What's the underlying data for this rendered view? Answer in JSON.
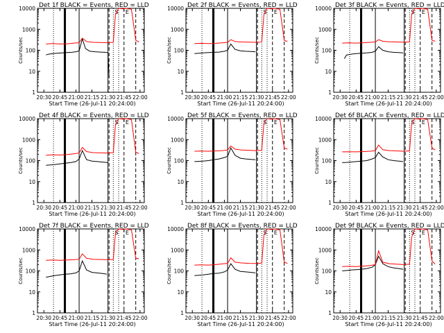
{
  "colors": {
    "events": "#000000",
    "lld": "#ff0000",
    "axis": "#000000"
  },
  "shared": {
    "ylabel": "Counts/sec",
    "xlabel": "Start Time (26-Jul-11 20:24:00)",
    "y_ticks": [
      "1",
      "10",
      "100",
      "1000",
      "10000"
    ],
    "x_ticks": [
      "20:30",
      "20:45",
      "21:00",
      "21:15",
      "21:30",
      "21:45",
      "22:00"
    ],
    "markers": {
      "s": "S",
      "e": "E"
    }
  },
  "chart_data": [
    {
      "type": "line",
      "title": "Det 1f BLACK = Events, RED = LLD",
      "xlabel": "Start Time (26-Jul-11 20:24:00)",
      "ylabel": "Counts/sec",
      "xlim": [
        "20:24",
        "22:04"
      ],
      "ylim": [
        1,
        10000
      ],
      "yscale": "log",
      "series": [
        {
          "name": "Events",
          "color": "#000000",
          "x": [
            "20:32",
            "20:34",
            "20:38",
            "20:42",
            "20:47",
            "20:51",
            "20:56",
            "21:00",
            "21:03",
            "21:06",
            "21:09",
            "21:13",
            "21:18",
            "21:23",
            "21:27",
            "21:30",
            "21:31"
          ],
          "y": [
            60,
            65,
            70,
            72,
            75,
            78,
            80,
            85,
            95,
            350,
            120,
            90,
            85,
            82,
            80,
            78,
            5
          ]
        },
        {
          "name": "LLD",
          "color": "#ff0000",
          "x": [
            "20:32",
            "20:38",
            "20:45",
            "20:52",
            "20:58",
            "21:03",
            "21:06",
            "21:10",
            "21:16",
            "21:23",
            "21:29",
            "21:35",
            "21:37",
            "21:40",
            "21:44",
            "21:47",
            "21:52",
            "21:56",
            "21:59"
          ],
          "y": [
            200,
            210,
            200,
            205,
            220,
            230,
            380,
            260,
            240,
            235,
            230,
            240,
            5000,
            10000,
            9500,
            10000,
            9000,
            300,
            250
          ]
        }
      ]
    },
    {
      "type": "line",
      "title": "Det 2f BLACK = Events, RED = LLD",
      "xlabel": "Start Time (26-Jul-11 20:24:00)",
      "ylabel": "Counts/sec",
      "xlim": [
        "20:24",
        "22:04"
      ],
      "ylim": [
        1,
        10000
      ],
      "yscale": "log",
      "series": [
        {
          "name": "Events",
          "color": "#000000",
          "x": [
            "20:32",
            "20:36",
            "20:40",
            "20:45",
            "20:50",
            "20:55",
            "21:00",
            "21:03",
            "21:06",
            "21:10",
            "21:15",
            "21:20",
            "21:25",
            "21:29"
          ],
          "y": [
            70,
            72,
            75,
            78,
            80,
            82,
            90,
            100,
            200,
            110,
            95,
            90,
            88,
            85
          ]
        },
        {
          "name": "LLD",
          "color": "#ff0000",
          "x": [
            "20:32",
            "20:38",
            "20:45",
            "20:52",
            "20:58",
            "21:03",
            "21:06",
            "21:10",
            "21:16",
            "21:23",
            "21:29",
            "21:35",
            "21:37",
            "21:40",
            "21:44",
            "21:47",
            "21:52",
            "21:56",
            "21:59"
          ],
          "y": [
            210,
            215,
            210,
            215,
            225,
            240,
            320,
            260,
            250,
            245,
            240,
            245,
            5000,
            10000,
            9500,
            10000,
            9000,
            300,
            260
          ]
        }
      ]
    },
    {
      "type": "line",
      "title": "Det 3f BLACK = Events, RED = LLD",
      "xlabel": "Start Time (26-Jul-11 20:24:00)",
      "ylabel": "Counts/sec",
      "xlim": [
        "20:24",
        "22:04"
      ],
      "ylim": [
        1,
        10000
      ],
      "yscale": "log",
      "series": [
        {
          "name": "Events",
          "color": "#000000",
          "x": [
            "20:34",
            "20:36",
            "20:40",
            "20:45",
            "20:50",
            "20:55",
            "21:00",
            "21:03",
            "21:06",
            "21:10",
            "21:15",
            "21:20",
            "21:25",
            "21:29"
          ],
          "y": [
            40,
            60,
            65,
            70,
            72,
            75,
            80,
            90,
            150,
            100,
            85,
            80,
            78,
            75
          ]
        },
        {
          "name": "LLD",
          "color": "#ff0000",
          "x": [
            "20:32",
            "20:38",
            "20:45",
            "20:52",
            "20:58",
            "21:03",
            "21:06",
            "21:10",
            "21:16",
            "21:23",
            "21:29",
            "21:35",
            "21:37",
            "21:40",
            "21:44",
            "21:47",
            "21:52",
            "21:56",
            "21:59"
          ],
          "y": [
            220,
            225,
            220,
            230,
            240,
            250,
            320,
            270,
            255,
            250,
            245,
            250,
            5000,
            10000,
            9500,
            10000,
            9000,
            300,
            270
          ]
        }
      ]
    },
    {
      "type": "line",
      "title": "Det 4f BLACK = Events, RED = LLD",
      "xlabel": "Start Time (26-Jul-11 20:24:00)",
      "ylabel": "Counts/sec",
      "xlim": [
        "20:24",
        "22:04"
      ],
      "ylim": [
        1,
        10000
      ],
      "yscale": "log",
      "series": [
        {
          "name": "Events",
          "color": "#000000",
          "x": [
            "20:32",
            "20:36",
            "20:40",
            "20:45",
            "20:50",
            "20:55",
            "21:00",
            "21:03",
            "21:06",
            "21:10",
            "21:15",
            "21:20",
            "21:25",
            "21:30"
          ],
          "y": [
            60,
            62,
            65,
            70,
            75,
            80,
            90,
            120,
            300,
            110,
            95,
            90,
            85,
            80
          ]
        },
        {
          "name": "LLD",
          "color": "#ff0000",
          "x": [
            "20:32",
            "20:38",
            "20:45",
            "20:52",
            "20:58",
            "21:03",
            "21:06",
            "21:10",
            "21:16",
            "21:23",
            "21:29",
            "21:35",
            "21:37",
            "21:40",
            "21:44",
            "21:47",
            "21:52",
            "21:56",
            "21:59"
          ],
          "y": [
            180,
            190,
            185,
            195,
            210,
            230,
            420,
            270,
            240,
            235,
            230,
            240,
            5000,
            10000,
            9500,
            10000,
            9000,
            250,
            220
          ]
        }
      ]
    },
    {
      "type": "line",
      "title": "Det 5f BLACK = Events, RED = LLD",
      "xlabel": "Start Time (26-Jul-11 20:24:00)",
      "ylabel": "Counts/sec",
      "xlim": [
        "20:24",
        "22:04"
      ],
      "ylim": [
        1,
        10000
      ],
      "yscale": "log",
      "series": [
        {
          "name": "Events",
          "color": "#000000",
          "x": [
            "20:32",
            "20:36",
            "20:40",
            "20:45",
            "20:50",
            "20:55",
            "21:00",
            "21:03",
            "21:06",
            "21:10",
            "21:15",
            "21:20",
            "21:25",
            "21:29"
          ],
          "y": [
            90,
            92,
            95,
            100,
            110,
            120,
            140,
            160,
            400,
            180,
            130,
            120,
            115,
            110
          ]
        },
        {
          "name": "LLD",
          "color": "#ff0000",
          "x": [
            "20:32",
            "20:38",
            "20:45",
            "20:52",
            "20:58",
            "21:03",
            "21:06",
            "21:10",
            "21:16",
            "21:23",
            "21:29",
            "21:35",
            "21:37",
            "21:40",
            "21:44",
            "21:47",
            "21:52",
            "21:56",
            "21:59"
          ],
          "y": [
            280,
            285,
            280,
            290,
            300,
            320,
            500,
            350,
            320,
            310,
            300,
            310,
            6000,
            10000,
            9500,
            10000,
            9000,
            400,
            350
          ]
        }
      ]
    },
    {
      "type": "line",
      "title": "Det 6f BLACK = Events, RED = LLD",
      "xlabel": "Start Time (26-Jul-11 20:24:00)",
      "ylabel": "Counts/sec",
      "xlim": [
        "20:24",
        "22:04"
      ],
      "ylim": [
        1,
        10000
      ],
      "yscale": "log",
      "series": [
        {
          "name": "Events",
          "color": "#000000",
          "x": [
            "20:32",
            "20:36",
            "20:40",
            "20:45",
            "20:50",
            "20:55",
            "21:00",
            "21:03",
            "21:06",
            "21:10",
            "21:15",
            "21:20",
            "21:25",
            "21:29"
          ],
          "y": [
            80,
            82,
            85,
            90,
            95,
            100,
            120,
            140,
            250,
            150,
            110,
            100,
            95,
            90
          ]
        },
        {
          "name": "LLD",
          "color": "#ff0000",
          "x": [
            "20:32",
            "20:38",
            "20:45",
            "20:52",
            "20:58",
            "21:03",
            "21:06",
            "21:10",
            "21:16",
            "21:23",
            "21:29",
            "21:35",
            "21:37",
            "21:40",
            "21:44",
            "21:47",
            "21:52",
            "21:56",
            "21:59"
          ],
          "y": [
            260,
            265,
            260,
            270,
            280,
            300,
            550,
            330,
            300,
            290,
            280,
            290,
            6000,
            10000,
            9500,
            10000,
            9000,
            400,
            320
          ]
        }
      ]
    },
    {
      "type": "line",
      "title": "Det 7f BLACK = Events, RED = LLD",
      "xlabel": "Start Time (26-Jul-11 20:24:00)",
      "ylabel": "Counts/sec",
      "xlim": [
        "20:24",
        "22:04"
      ],
      "ylim": [
        1,
        10000
      ],
      "yscale": "log",
      "series": [
        {
          "name": "Events",
          "color": "#000000",
          "x": [
            "20:32",
            "20:36",
            "20:40",
            "20:45",
            "20:50",
            "20:55",
            "21:00",
            "21:03",
            "21:06",
            "21:10",
            "21:15",
            "21:20",
            "21:25",
            "21:29"
          ],
          "y": [
            50,
            55,
            60,
            65,
            70,
            72,
            80,
            100,
            300,
            110,
            85,
            80,
            75,
            70
          ]
        },
        {
          "name": "LLD",
          "color": "#ff0000",
          "x": [
            "20:32",
            "20:38",
            "20:45",
            "20:52",
            "20:58",
            "21:03",
            "21:06",
            "21:10",
            "21:16",
            "21:23",
            "21:29",
            "21:35",
            "21:37",
            "21:40",
            "21:44",
            "21:47",
            "21:52",
            "21:56",
            "21:59"
          ],
          "y": [
            320,
            330,
            320,
            330,
            340,
            360,
            650,
            400,
            360,
            350,
            340,
            350,
            6000,
            10000,
            9500,
            10000,
            9000,
            400,
            380
          ]
        }
      ]
    },
    {
      "type": "line",
      "title": "Det 8f BLACK = Events, RED = LLD",
      "xlabel": "Start Time (26-Jul-11 20:24:00)",
      "ylabel": "Counts/sec",
      "xlim": [
        "20:24",
        "22:04"
      ],
      "ylim": [
        1,
        10000
      ],
      "yscale": "log",
      "series": [
        {
          "name": "Events",
          "color": "#000000",
          "x": [
            "20:32",
            "20:36",
            "20:40",
            "20:45",
            "20:50",
            "20:55",
            "21:00",
            "21:03",
            "21:06",
            "21:10",
            "21:15",
            "21:20",
            "21:25",
            "21:29"
          ],
          "y": [
            60,
            62,
            65,
            70,
            75,
            78,
            90,
            110,
            220,
            120,
            95,
            90,
            85,
            80
          ]
        },
        {
          "name": "LLD",
          "color": "#ff0000",
          "x": [
            "20:32",
            "20:38",
            "20:45",
            "20:52",
            "20:58",
            "21:03",
            "21:06",
            "21:10",
            "21:16",
            "21:23",
            "21:29",
            "21:35",
            "21:37",
            "21:40",
            "21:44",
            "21:47",
            "21:52",
            "21:56",
            "21:59"
          ],
          "y": [
            190,
            195,
            190,
            200,
            215,
            230,
            420,
            260,
            240,
            230,
            225,
            235,
            5000,
            10000,
            9500,
            10000,
            9000,
            260,
            230
          ]
        }
      ]
    },
    {
      "type": "line",
      "title": "Det 9f BLACK = Events, RED = LLD",
      "xlabel": "Start Time (26-Jul-11 20:24:00)",
      "ylabel": "Counts/sec",
      "xlim": [
        "20:24",
        "22:04"
      ],
      "ylim": [
        1,
        10000
      ],
      "yscale": "log",
      "series": [
        {
          "name": "Events",
          "color": "#000000",
          "x": [
            "20:32",
            "20:36",
            "20:40",
            "20:45",
            "20:50",
            "20:55",
            "21:00",
            "21:03",
            "21:06",
            "21:10",
            "21:15",
            "21:20",
            "21:25",
            "21:29"
          ],
          "y": [
            100,
            105,
            110,
            115,
            120,
            130,
            150,
            200,
            500,
            220,
            160,
            140,
            130,
            120
          ]
        },
        {
          "name": "LLD",
          "color": "#ff0000",
          "x": [
            "20:32",
            "20:38",
            "20:45",
            "20:52",
            "20:58",
            "21:03",
            "21:06",
            "21:10",
            "21:16",
            "21:23",
            "21:29",
            "21:35",
            "21:37",
            "21:40",
            "21:44",
            "21:47",
            "21:52",
            "21:56",
            "21:59"
          ],
          "y": [
            160,
            165,
            160,
            170,
            180,
            200,
            900,
            260,
            220,
            210,
            200,
            210,
            4000,
            10000,
            9500,
            10000,
            9000,
            300,
            210
          ]
        }
      ]
    }
  ]
}
